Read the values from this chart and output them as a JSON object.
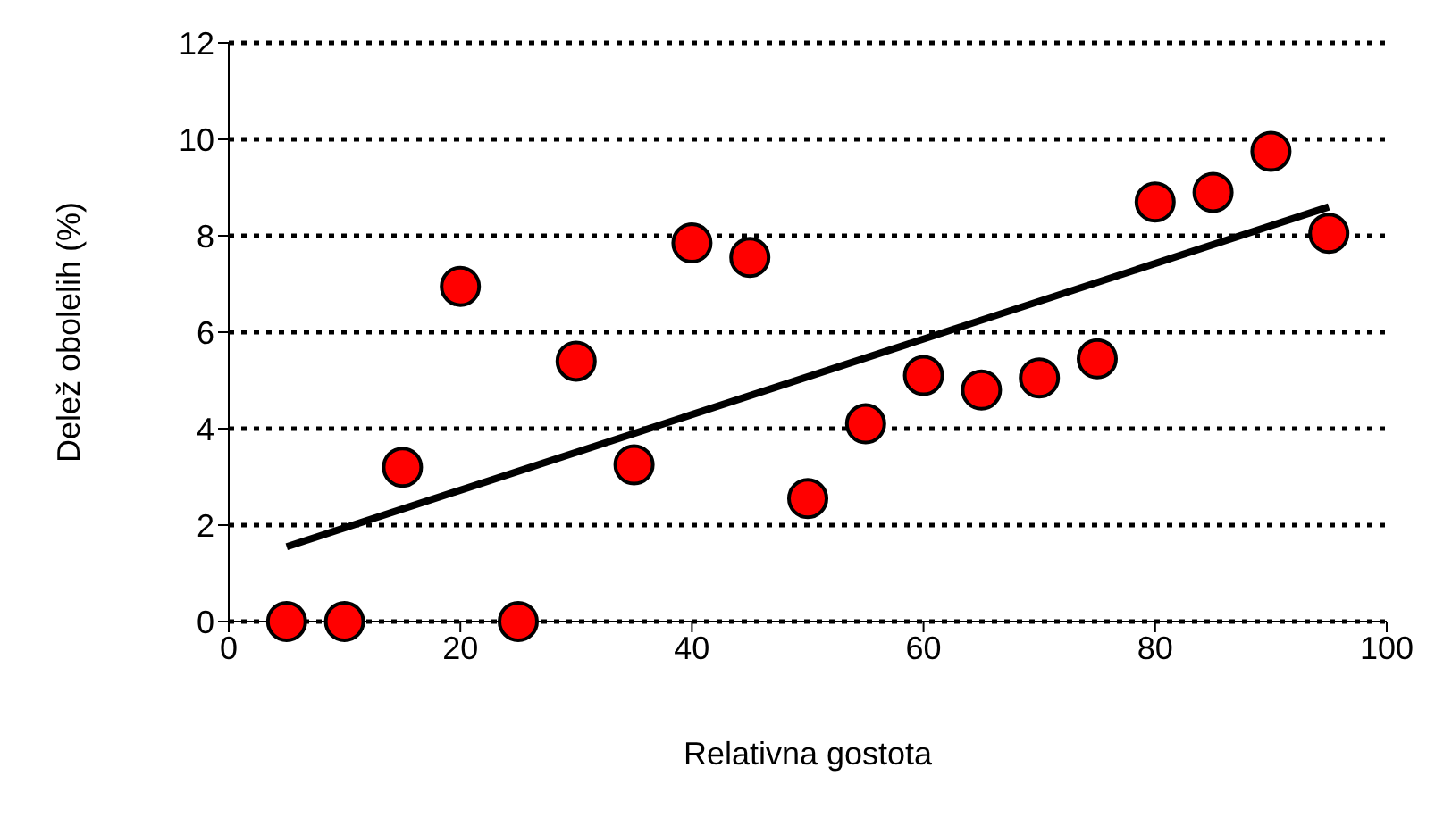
{
  "chart_data": {
    "type": "scatter",
    "xlabel": "Relativna gostota",
    "ylabel": "Delež obolelih (%)",
    "xlim": [
      0,
      100
    ],
    "xticks": [
      0,
      20,
      40,
      60,
      80,
      100
    ],
    "ylim": [
      0,
      12
    ],
    "yticks": [
      0,
      2,
      4,
      6,
      8,
      10,
      12
    ],
    "grid": "y",
    "marker": "circle",
    "legend": false,
    "series": [
      {
        "color": "#ff0000",
        "x": [
          5,
          10,
          15,
          20,
          25,
          30,
          35,
          40,
          45,
          50,
          55,
          60,
          65,
          70,
          75,
          80,
          85,
          90,
          95
        ],
        "values": [
          0,
          0,
          3.2,
          6.95,
          0,
          5.4,
          3.25,
          7.85,
          7.55,
          2.55,
          4.1,
          5.1,
          4.8,
          5.05,
          5.45,
          8.7,
          8.9,
          9.75,
          8.05
        ]
      },
      {
        "type": "line",
        "color": "#000000",
        "line_style": "solid",
        "marker": "none",
        "x": [
          5,
          95
        ],
        "values": [
          1.55,
          8.6
        ]
      }
    ]
  }
}
